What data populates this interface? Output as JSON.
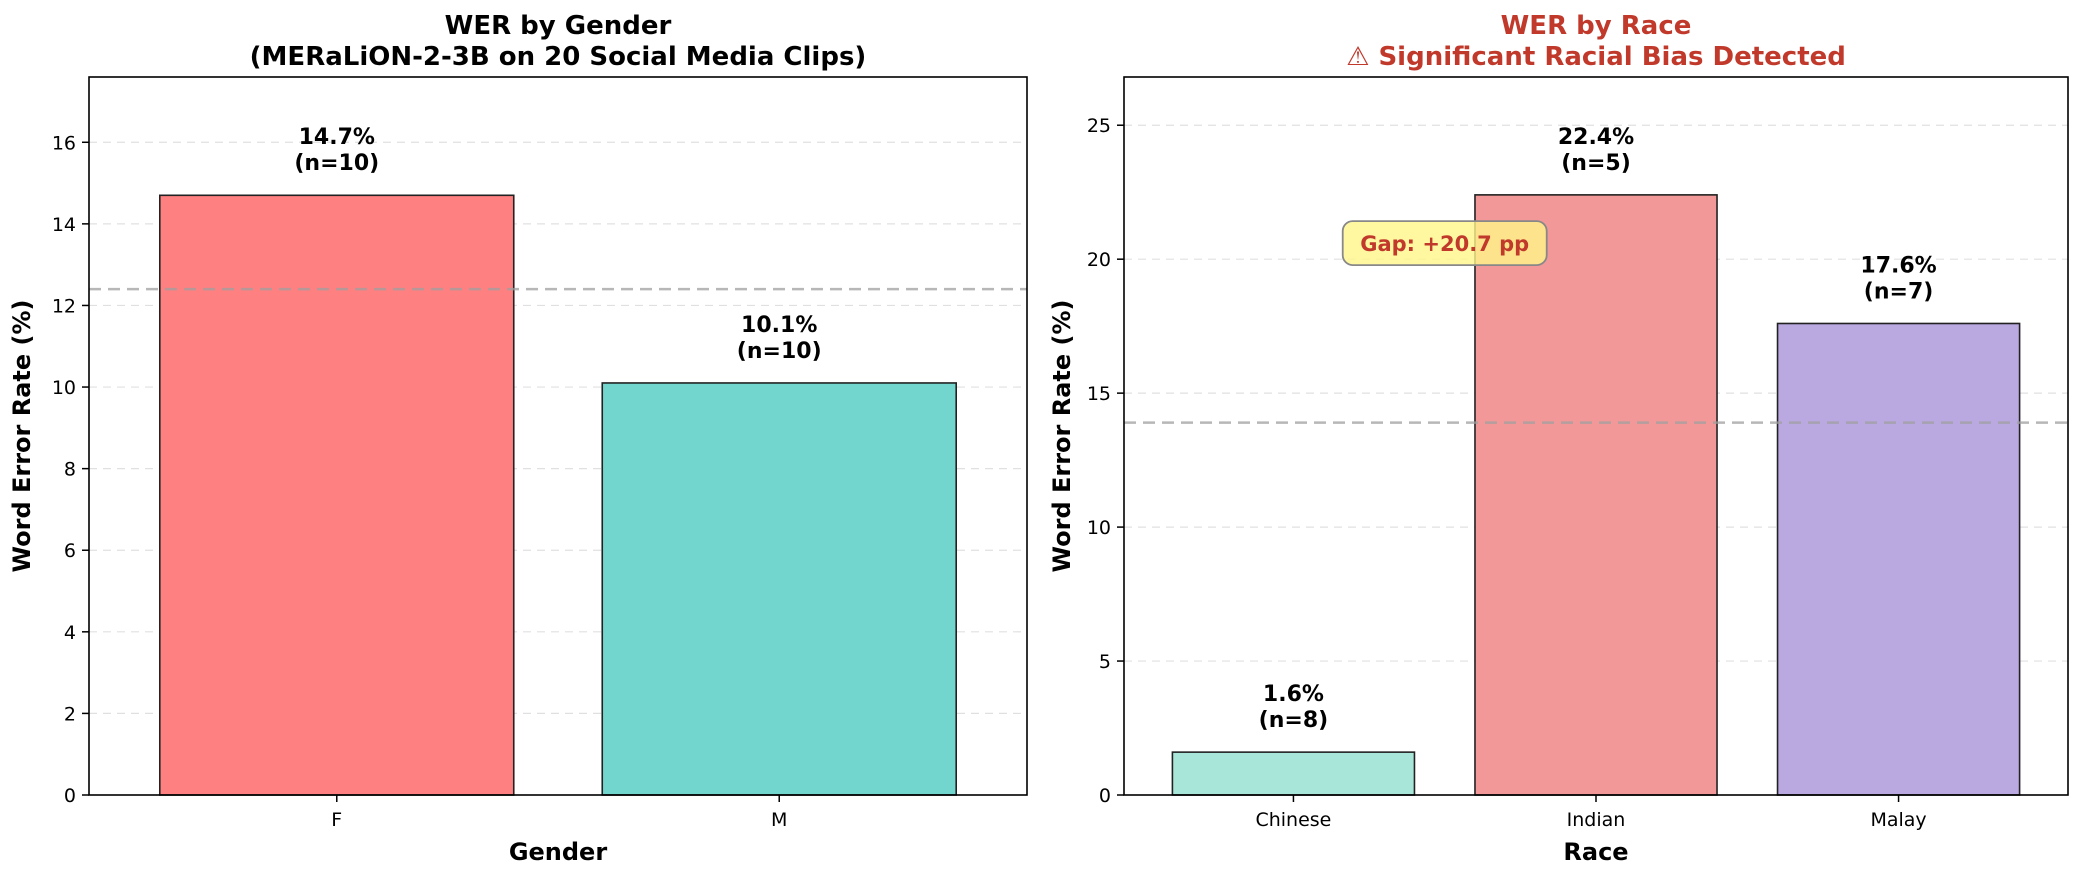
{
  "chart_data": [
    {
      "type": "bar",
      "title_lines": [
        "WER by Gender",
        "(MERaLiON-2-3B on 20 Social Media Clips)"
      ],
      "title_color": "#000000",
      "xlabel": "Gender",
      "ylabel": "Word Error Rate (%)",
      "categories": [
        "F",
        "M"
      ],
      "values": [
        14.7,
        10.1
      ],
      "n": [
        10,
        10
      ],
      "bar_labels": [
        "14.7%",
        "10.1%"
      ],
      "count_labels": [
        "(n=10)",
        "(n=10)"
      ],
      "colors": [
        "#ff8080",
        "#72d6ce"
      ],
      "ylim": [
        0,
        17.6
      ],
      "yticks": [
        0,
        2,
        4,
        6,
        8,
        10,
        12,
        14,
        16
      ],
      "ytick_labels": [
        "0",
        "2",
        "4",
        "6",
        "8",
        "10",
        "12",
        "14",
        "16"
      ],
      "mean_line": 12.4,
      "grid": true
    },
    {
      "type": "bar",
      "title_lines": [
        "WER by Race",
        "⚠ Significant Racial Bias Detected"
      ],
      "title_color": "#c0392b",
      "xlabel": "Race",
      "ylabel": "Word Error Rate (%)",
      "categories": [
        "Chinese",
        "Indian",
        "Malay"
      ],
      "values": [
        1.6,
        22.4,
        17.6
      ],
      "n": [
        8,
        5,
        7
      ],
      "bar_labels": [
        "1.6%",
        "22.4%",
        "17.6%"
      ],
      "count_labels": [
        "(n=8)",
        "(n=5)",
        "(n=7)"
      ],
      "colors": [
        "#a8e6da",
        "#f29898",
        "#baa8e0"
      ],
      "ylim": [
        0,
        26.8
      ],
      "yticks": [
        0,
        5,
        10,
        15,
        20,
        25
      ],
      "ytick_labels": [
        "0",
        "5",
        "10",
        "15",
        "20",
        "25"
      ],
      "mean_line": 13.9,
      "grid": true,
      "annotation": {
        "text": "Gap: +20.7 pp",
        "color": "#c0392b",
        "y": 20.6
      }
    }
  ]
}
